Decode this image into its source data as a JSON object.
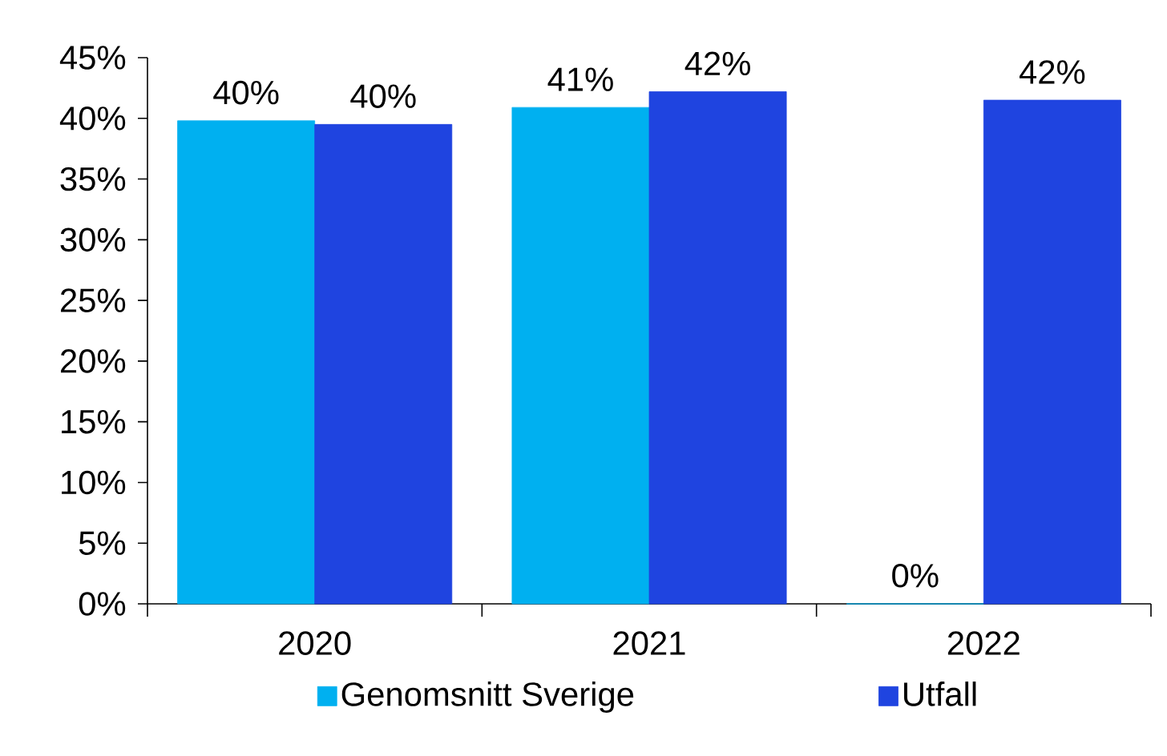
{
  "chart_data": {
    "type": "bar",
    "categories": [
      "2020",
      "2021",
      "2022"
    ],
    "series": [
      {
        "name": "Genomsnitt Sverige",
        "color": "#00b0f0",
        "values": [
          39.8,
          40.9,
          0
        ],
        "value_labels": [
          "40%",
          "41%",
          "0%"
        ]
      },
      {
        "name": "Utfall",
        "color": "#1f44e0",
        "values": [
          39.5,
          42.2,
          41.5
        ],
        "value_labels": [
          "40%",
          "42%",
          "42%"
        ]
      }
    ],
    "ylim": [
      0,
      45
    ],
    "yticks": [
      {
        "value": 0,
        "label": "0%"
      },
      {
        "value": 5,
        "label": "5%"
      },
      {
        "value": 10,
        "label": "10%"
      },
      {
        "value": 15,
        "label": "15%"
      },
      {
        "value": 20,
        "label": "20%"
      },
      {
        "value": 25,
        "label": "25%"
      },
      {
        "value": 30,
        "label": "30%"
      },
      {
        "value": 35,
        "label": "35%"
      },
      {
        "value": 40,
        "label": "40%"
      },
      {
        "value": 45,
        "label": "45%"
      }
    ],
    "legend": "bottom",
    "grid": false
  }
}
